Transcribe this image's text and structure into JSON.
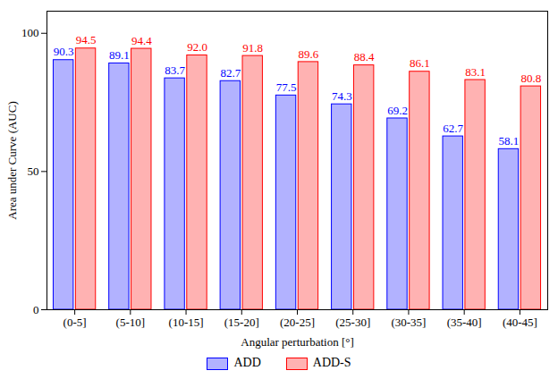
{
  "chart_data": {
    "type": "bar",
    "x_label": "Angular perturbation [°]",
    "y_label": "Area under Curve (AUC)",
    "categories": [
      "(0-5]",
      "(5-10]",
      "(10-15]",
      "(15-20]",
      "(20-25]",
      "(25-30]",
      "(30-35]",
      "(35-40]",
      "(40-45]"
    ],
    "series": [
      {
        "name": "ADD",
        "color": "#0000ff",
        "values": [
          90.3,
          89.1,
          83.7,
          82.7,
          77.5,
          74.3,
          69.2,
          62.7,
          58.1
        ],
        "value_labels": [
          "90.3",
          "89.1",
          "83.7",
          "82.7",
          "77.5",
          "74.3",
          "69.2",
          "62.7",
          "58.1"
        ]
      },
      {
        "name": "ADD-S",
        "color": "#ff0000",
        "values": [
          94.5,
          94.4,
          92.0,
          91.8,
          89.6,
          88.4,
          86.1,
          83.1,
          80.8
        ],
        "value_labels": [
          "94.5",
          "94.4",
          "92.0",
          "91.8",
          "89.6",
          "88.4",
          "86.1",
          "83.1",
          "80.8"
        ]
      }
    ],
    "ylim": [
      0,
      108
    ],
    "yticks": [
      0,
      50,
      100
    ],
    "grid": false,
    "data_labels": true,
    "legend": "bottom"
  }
}
